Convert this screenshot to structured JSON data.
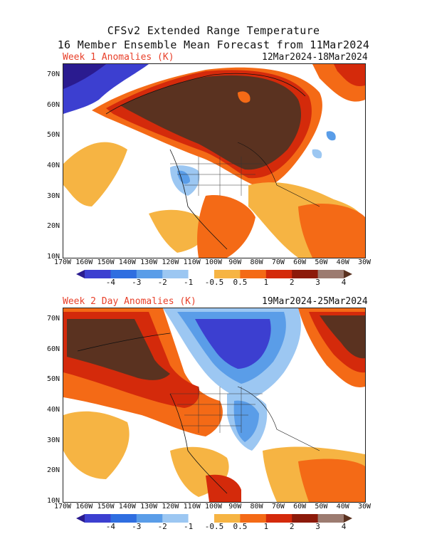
{
  "header": {
    "line1": "CFSv2 Extended Range Temperature",
    "line2": "16 Member Ensemble Mean Forecast from 11Mar2024"
  },
  "panels": [
    {
      "label": "Week 1 Anomalies (K)",
      "dates": "12Mar2024-18Mar2024"
    },
    {
      "label": "Week 2 Day Anomalies (K)",
      "dates": "19Mar2024-25Mar2024"
    }
  ],
  "lat_labels": [
    "70N",
    "60N",
    "50N",
    "40N",
    "30N",
    "20N",
    "10N"
  ],
  "lon_labels": [
    "170W",
    "160W",
    "150W",
    "140W",
    "130W",
    "120W",
    "110W",
    "100W",
    "90W",
    "80W",
    "70W",
    "60W",
    "50W",
    "40W",
    "30W"
  ],
  "colorbar": {
    "labels": [
      "-4",
      "-3",
      "-2",
      "-1",
      "-0.5",
      "0.5",
      "1",
      "2",
      "3",
      "4"
    ],
    "colors": [
      "#2a1b8f",
      "#3c3fd0",
      "#2f6ee0",
      "#5a9de8",
      "#9cc7f2",
      "#ffffff",
      "#f6b443",
      "#f46a16",
      "#d42a0b",
      "#8c1a0a",
      "#9c7b70",
      "#5a3220"
    ]
  },
  "colors": {
    "title": "#111111",
    "panel_label": "#e8402a"
  }
}
